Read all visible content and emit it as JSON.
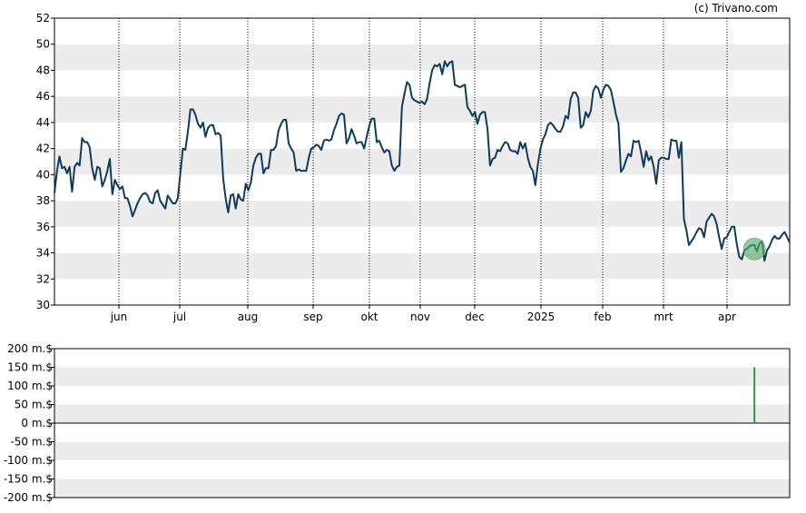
{
  "watermark": "(c) Trivano.com",
  "chart_data": [
    {
      "type": "line",
      "title": "",
      "xlabel": "",
      "ylabel": "",
      "ylim": [
        30,
        52
      ],
      "grid": "horizontal alternating bands + dotted vertical month lines",
      "y_ticks": [
        "30",
        "32",
        "34",
        "36",
        "38",
        "40",
        "42",
        "44",
        "46",
        "48",
        "50",
        "52"
      ],
      "month_labels": [
        "jun",
        "jul",
        "aug",
        "sep",
        "okt",
        "nov",
        "dec",
        "2025",
        "feb",
        "mrt",
        "apr"
      ],
      "series": [
        {
          "color": "#0f3a5a",
          "values": [
            38.6,
            40.3,
            41.4,
            40.5,
            40.6,
            40.1,
            40.6,
            38.7,
            40.6,
            40.9,
            40.7,
            42.8,
            42.5,
            42.5,
            42.1,
            40.5,
            39.6,
            40.6,
            40.5,
            39.1,
            39.6,
            40.3,
            41.2,
            38.5,
            39.6,
            39.2,
            38.9,
            39.1,
            38.2,
            38.2,
            37.6,
            36.8,
            37.3,
            37.8,
            38.2,
            38.5,
            38.6,
            38.4,
            37.9,
            37.8,
            38.6,
            38.8,
            38.0,
            37.7,
            37.4,
            38.4,
            38.1,
            37.8,
            37.8,
            38.2,
            40.1,
            42.0,
            41.9,
            43.3,
            45.0,
            45.0,
            44.6,
            43.9,
            43.6,
            44.0,
            42.9,
            43.6,
            43.8,
            43.8,
            43.1,
            43.2,
            43.0,
            39.7,
            38.2,
            37.1,
            38.4,
            38.5,
            37.4,
            38.5,
            38.1,
            38.0,
            39.3,
            38.8,
            39.4,
            40.7,
            41.3,
            41.6,
            41.6,
            40.1,
            40.5,
            40.5,
            41.9,
            41.9,
            42.2,
            43.4,
            43.9,
            44.2,
            44.2,
            42.4,
            42.0,
            41.7,
            40.3,
            40.4,
            40.3,
            40.3,
            40.3,
            41.3,
            42.0,
            42.1,
            42.3,
            42.2,
            41.9,
            42.6,
            42.7,
            42.6,
            42.7,
            43.4,
            43.9,
            44.5,
            44.7,
            44.6,
            42.4,
            42.8,
            43.5,
            43.0,
            42.4,
            42.5,
            42.5,
            42.0,
            42.9,
            43.7,
            44.3,
            44.3,
            42.5,
            42.6,
            42.1,
            41.7,
            41.9,
            41.8,
            40.7,
            40.3,
            40.6,
            40.7,
            45.2,
            46.2,
            47.1,
            46.9,
            45.9,
            45.7,
            45.6,
            45.5,
            45.6,
            45.4,
            45.8,
            47.0,
            48.0,
            48.4,
            48.3,
            48.5,
            47.7,
            48.7,
            48.3,
            48.6,
            48.7,
            46.9,
            46.8,
            46.7,
            46.8,
            46.9,
            45.2,
            44.9,
            44.5,
            44.8,
            43.9,
            44.6,
            44.8,
            44.8,
            43.5,
            40.7,
            41.2,
            41.3,
            41.9,
            41.8,
            42.2,
            42.5,
            42.4,
            41.9,
            41.8,
            41.8,
            41.6,
            42.5,
            42.0,
            42.4,
            41.3,
            40.6,
            40.3,
            39.2,
            40.8,
            42.0,
            42.7,
            43.1,
            43.8,
            44.0,
            43.8,
            43.5,
            43.3,
            43.3,
            43.7,
            44.5,
            44.3,
            45.8,
            46.3,
            46.3,
            45.9,
            43.6,
            43.8,
            44.8,
            44.4,
            44.9,
            46.4,
            46.8,
            46.6,
            45.9,
            46.5,
            46.9,
            46.8,
            46.5,
            45.6,
            44.6,
            43.9,
            40.2,
            40.5,
            41.1,
            41.6,
            41.4,
            42.6,
            42.5,
            42.6,
            41.7,
            40.6,
            41.8,
            41.1,
            41.4,
            40.6,
            39.3,
            41.1,
            41.3,
            41.3,
            41.2,
            41.2,
            42.7,
            42.6,
            42.6,
            41.3,
            42.5,
            36.6,
            35.7,
            34.6,
            34.9,
            35.2,
            35.6,
            35.9,
            35.8,
            35.2,
            36.4,
            36.7,
            37.0,
            36.8,
            36.2,
            35.2,
            34.3,
            35.1,
            35.2,
            35.6,
            36.0,
            36.0,
            34.7,
            33.7,
            33.5,
            34.2,
            34.3,
            34.5,
            34.6,
            34.6,
            34.1,
            34.7,
            34.9,
            33.4,
            34.2,
            34.5,
            35.0,
            35.3,
            35.1,
            35.1,
            35.4,
            35.6,
            35.2,
            34.8
          ]
        }
      ],
      "marker": {
        "value": 34.3,
        "color": "#5aaa6a"
      }
    },
    {
      "type": "bar",
      "title": "",
      "xlabel": "",
      "ylabel": "",
      "ylim": [
        -200,
        200
      ],
      "y_ticks": [
        "200 m.$",
        "150 m.$",
        "100 m.$",
        "50 m.$",
        "0 m.$",
        "-50 m.$",
        "-100 m.$",
        "-150 m.$",
        "-200 m.$"
      ],
      "bars": [
        {
          "index": 278,
          "value": 150,
          "color": "#2e9a45"
        }
      ]
    }
  ]
}
